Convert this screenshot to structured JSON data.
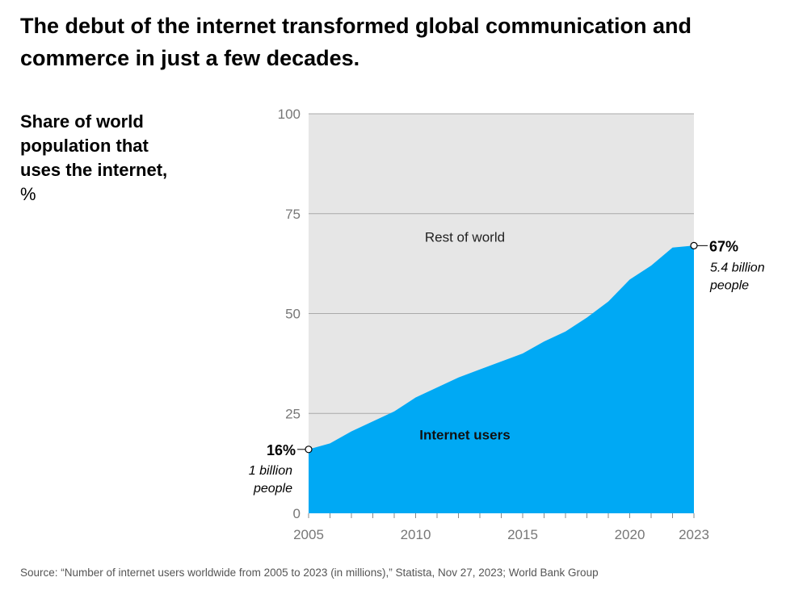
{
  "title": "The debut of the internet transformed global communication and commerce in just a few decades.",
  "ylabel": {
    "bold": "Share of world population that uses the internet,",
    "unit": "%"
  },
  "source": "Source: “Number of internet users worldwide from 2005 to 2023 (in millions),” Statista, Nov 27, 2023; World Bank Group",
  "chart_data": {
    "type": "area",
    "title": "",
    "xlabel": "",
    "ylabel": "Share of world population that uses the internet, %",
    "xlim": [
      2005,
      2023
    ],
    "ylim": [
      0,
      100
    ],
    "yticks": [
      0,
      25,
      50,
      75,
      100
    ],
    "xticks": [
      2005,
      2010,
      2015,
      2020,
      2023
    ],
    "grid": "horizontal",
    "x": [
      2005,
      2006,
      2007,
      2008,
      2009,
      2010,
      2011,
      2012,
      2013,
      2014,
      2015,
      2016,
      2017,
      2018,
      2019,
      2020,
      2021,
      2022,
      2023
    ],
    "series": [
      {
        "name": "Internet users",
        "values": [
          16,
          17.5,
          20.5,
          23,
          25.5,
          29,
          31.5,
          34,
          36,
          38,
          40,
          43,
          45.5,
          49,
          53,
          58.5,
          62,
          66.5,
          67
        ],
        "color": "#00a9f4"
      }
    ],
    "background_region": {
      "label": "Rest of world",
      "color": "#e6e6e6"
    },
    "annotations": {
      "start": {
        "value": "16%",
        "note_line1": "1 billion",
        "note_line2": "people"
      },
      "end": {
        "value": "67%",
        "note_line1": "5.4 billion",
        "note_line2": "people"
      }
    }
  }
}
